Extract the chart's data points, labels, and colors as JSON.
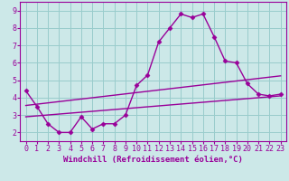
{
  "bg_color": "#cce8e8",
  "line_color": "#990099",
  "grid_color": "#99cccc",
  "xlabel": "Windchill (Refroidissement éolien,°C)",
  "xlim": [
    -0.5,
    23.5
  ],
  "ylim": [
    1.5,
    9.5
  ],
  "yticks": [
    2,
    3,
    4,
    5,
    6,
    7,
    8,
    9
  ],
  "xticks": [
    0,
    1,
    2,
    3,
    4,
    5,
    6,
    7,
    8,
    9,
    10,
    11,
    12,
    13,
    14,
    15,
    16,
    17,
    18,
    19,
    20,
    21,
    22,
    23
  ],
  "curve1_x": [
    0,
    1,
    2,
    3,
    4,
    5,
    6,
    7,
    8,
    9,
    10,
    11,
    12,
    13,
    14,
    15,
    16,
    17,
    18,
    19,
    20,
    21,
    22,
    23
  ],
  "curve1_y": [
    4.4,
    3.5,
    2.5,
    2.0,
    2.0,
    2.9,
    2.2,
    2.5,
    2.5,
    3.0,
    4.7,
    5.3,
    7.2,
    8.0,
    8.8,
    8.6,
    8.8,
    7.5,
    6.1,
    6.0,
    4.8,
    4.2,
    4.1,
    4.2
  ],
  "line2_x": [
    0,
    23
  ],
  "line2_y": [
    2.9,
    4.1
  ],
  "line3_x": [
    0,
    23
  ],
  "line3_y": [
    3.55,
    5.25
  ],
  "marker": "D",
  "markersize": 2.5,
  "linewidth": 1.0,
  "xlabel_fontsize": 6.5,
  "tick_fontsize": 6.0
}
